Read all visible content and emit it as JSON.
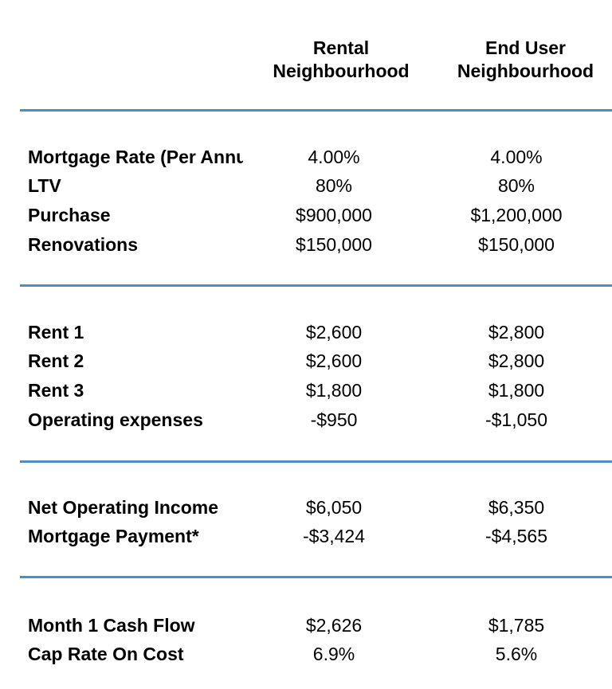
{
  "page": {
    "background_color": "#ffffff",
    "text_color": "#000000",
    "divider_color": "#4e8ec1"
  },
  "header": {
    "rental_label": "Rental\nNeighbourhood",
    "end_user_label": "End User\nNeighbourhood"
  },
  "sections": [
    {
      "name": "financing-assumptions",
      "rows": [
        {
          "label": "Mortgage Rate (Per Annu",
          "rental": "4.00%",
          "end_user": "4.00%"
        },
        {
          "label": "LTV",
          "rental": "80%",
          "end_user": "80%"
        },
        {
          "label": "Purchase",
          "rental": "$900,000",
          "end_user": "$1,200,000"
        },
        {
          "label": "Renovations",
          "rental": "$150,000",
          "end_user": "$150,000"
        }
      ]
    },
    {
      "name": "income-expenses",
      "rows": [
        {
          "label": "Rent 1",
          "rental": "$2,600",
          "end_user": "$2,800"
        },
        {
          "label": "Rent 2",
          "rental": "$2,600",
          "end_user": "$2,800"
        },
        {
          "label": "Rent 3",
          "rental": "$1,800",
          "end_user": "$1,800"
        },
        {
          "label": "Operating expenses",
          "rental": "-$950",
          "end_user": "-$1,050"
        }
      ]
    },
    {
      "name": "operating-results",
      "rows": [
        {
          "label": "Net Operating Income",
          "rental": "$6,050",
          "end_user": "$6,350"
        },
        {
          "label": "Mortgage Payment*",
          "rental": "-$3,424",
          "end_user": "-$4,565"
        }
      ]
    },
    {
      "name": "returns",
      "rows": [
        {
          "label": "Month 1 Cash Flow",
          "rental": "$2,626",
          "end_user": "$1,785"
        },
        {
          "label": "Cap Rate On Cost",
          "rental": "6.9%",
          "end_user": "5.6%"
        }
      ]
    }
  ],
  "chart_data": {
    "type": "table",
    "title": "",
    "columns": [
      "",
      "Rental Neighbourhood",
      "End User Neighbourhood"
    ],
    "rows": [
      [
        "Mortgage Rate (Per Annu",
        "4.00%",
        "4.00%"
      ],
      [
        "LTV",
        "80%",
        "80%"
      ],
      [
        "Purchase",
        "$900,000",
        "$1,200,000"
      ],
      [
        "Renovations",
        "$150,000",
        "$150,000"
      ],
      [
        "Rent 1",
        "$2,600",
        "$2,800"
      ],
      [
        "Rent 2",
        "$2,600",
        "$2,800"
      ],
      [
        "Rent 3",
        "$1,800",
        "$1,800"
      ],
      [
        "Operating expenses",
        "-$950",
        "-$1,050"
      ],
      [
        "Net Operating Income",
        "$6,050",
        "$6,350"
      ],
      [
        "Mortgage Payment*",
        "-$3,424",
        "-$4,565"
      ],
      [
        "Month 1 Cash Flow",
        "$2,626",
        "$1,785"
      ],
      [
        "Cap Rate On Cost",
        "6.9%",
        "5.6%"
      ]
    ]
  }
}
